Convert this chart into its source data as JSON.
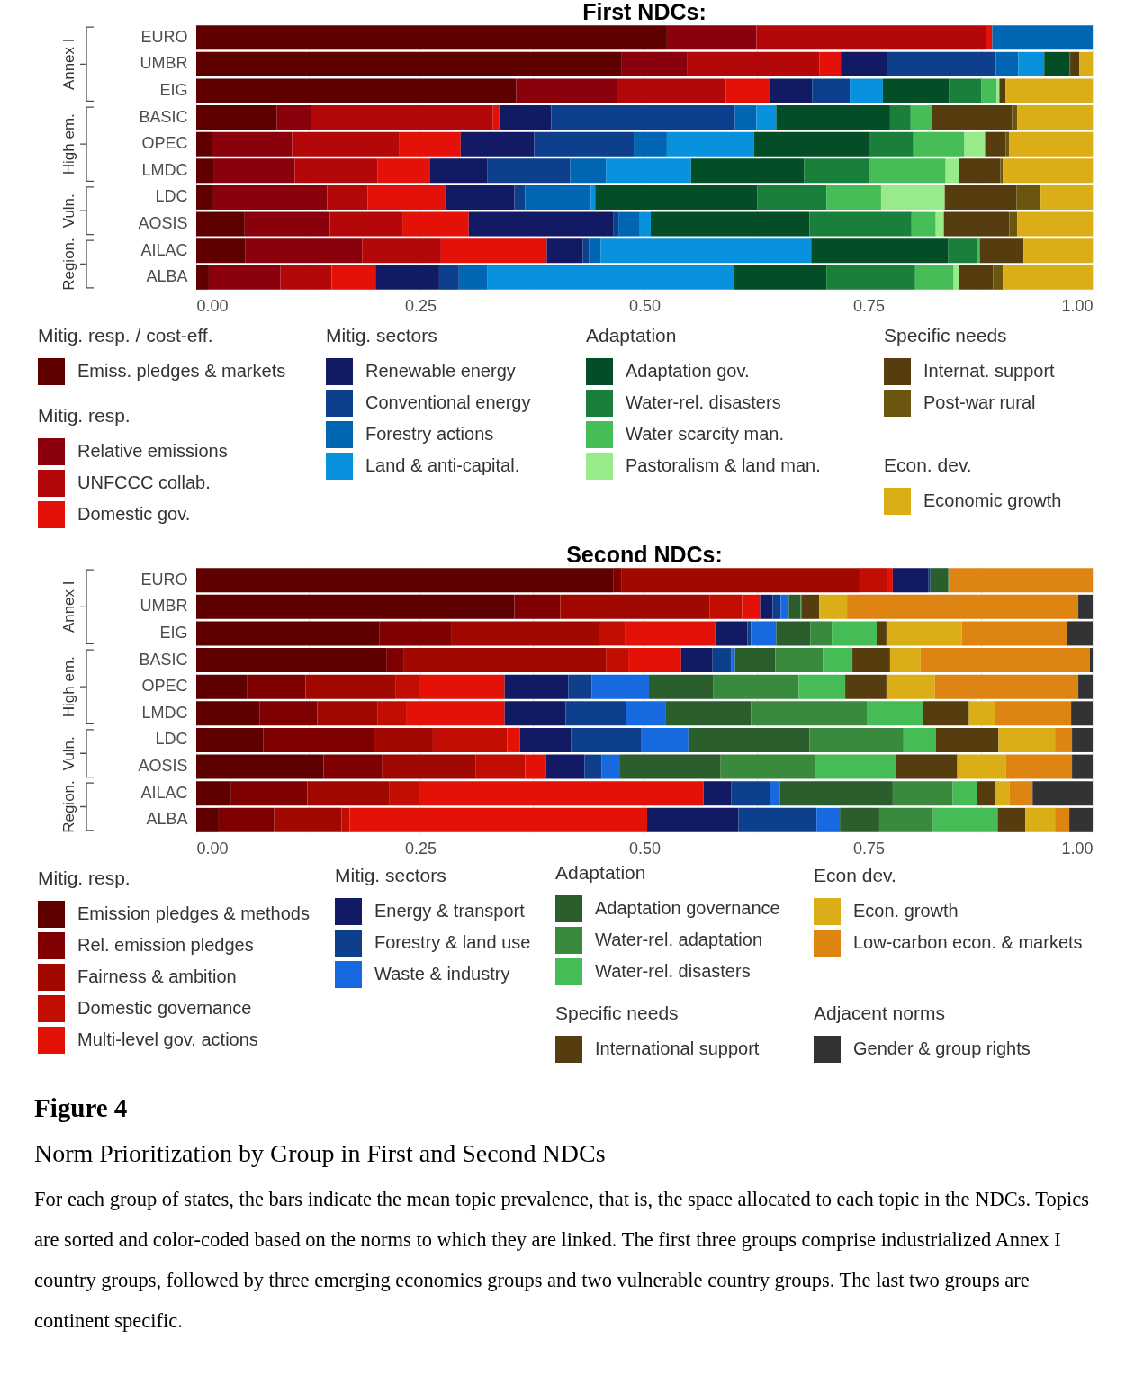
{
  "chart_data": [
    {
      "type": "bar",
      "orientation": "horizontal",
      "stacked": true,
      "title": "First NDCs:",
      "categories": [
        "EURO",
        "UMBR",
        "EIG",
        "BASIC",
        "OPEC",
        "LMDC",
        "LDC",
        "AOSIS",
        "AILAC",
        "ALBA"
      ],
      "xlim": [
        0,
        1
      ],
      "xticks": [
        {
          "value": 0,
          "label": "0.00"
        },
        {
          "value": 0.125,
          "label": null
        },
        {
          "value": 0.25,
          "label": "0.25"
        },
        {
          "value": 0.375,
          "label": null
        },
        {
          "value": 0.5,
          "label": "0.50"
        },
        {
          "value": 0.625,
          "label": null
        },
        {
          "value": 0.75,
          "label": "0.75"
        },
        {
          "value": 0.875,
          "label": null
        },
        {
          "value": 1,
          "label": "1.00"
        }
      ],
      "grid": true,
      "legend": "bottom",
      "legend_title": [
        "Mitig. resp. / cost-eff.",
        "Mitig. resp.",
        "Mitig. sectors",
        "Adaptation",
        "Specific needs",
        "Econ. dev."
      ],
      "annotations": [
        "Annex I",
        "High em.",
        "Vuln.",
        "Region."
      ],
      "series": [
        {
          "name": "Emiss. pledges & markets",
          "color": "#5e0000",
          "values": [
            0.525,
            0.474,
            0.357,
            0.09,
            0.018,
            0.02,
            0.019,
            0.054,
            0.055,
            0.014
          ]
        },
        {
          "name": "Relative emissions",
          "color": "#8a000b",
          "values": [
            0.1,
            0.074,
            0.112,
            0.038,
            0.089,
            0.09,
            0.127,
            0.095,
            0.13,
            0.08
          ]
        },
        {
          "name": "UNFCCC collab.",
          "color": "#b30709",
          "values": [
            0.256,
            0.147,
            0.122,
            0.203,
            0.119,
            0.092,
            0.045,
            0.081,
            0.088,
            0.057
          ]
        },
        {
          "name": "Domestic gov.",
          "color": "#e31107",
          "values": [
            0.007,
            0.024,
            0.049,
            0.007,
            0.069,
            0.059,
            0.087,
            0.074,
            0.118,
            0.049
          ]
        },
        {
          "name": "Renewable energy",
          "color": "#121a63",
          "values": [
            0,
            0.052,
            0.047,
            0.058,
            0.082,
            0.064,
            0.077,
            0.161,
            0.04,
            0.071
          ]
        },
        {
          "name": "Conventional energy",
          "color": "#0d3f8c",
          "values": [
            0,
            0.121,
            0.042,
            0.205,
            0.111,
            0.092,
            0.012,
            0.006,
            0.007,
            0.022
          ]
        },
        {
          "name": "Forestry actions",
          "color": "#0066b3",
          "values": [
            0.112,
            0.025,
            0,
            0.024,
            0.037,
            0.04,
            0.073,
            0.023,
            0.013,
            0.032
          ]
        },
        {
          "name": "Land & anti-capital.",
          "color": "#0892dd",
          "values": [
            0,
            0.029,
            0.037,
            0.022,
            0.097,
            0.095,
            0.005,
            0.013,
            0.235,
            0.275
          ]
        },
        {
          "name": "Adaptation gov.",
          "color": "#034d27",
          "values": [
            0,
            0.028,
            0.074,
            0.127,
            0.128,
            0.126,
            0.181,
            0.177,
            0.153,
            0.103
          ]
        },
        {
          "name": "Water-rel. disasters",
          "color": "#1a7f3a",
          "values": [
            0,
            0.001,
            0.036,
            0.023,
            0.05,
            0.073,
            0.077,
            0.114,
            0.032,
            0.099
          ]
        },
        {
          "name": "Water scarcity man.",
          "color": "#46bd57",
          "values": [
            0,
            0,
            0.017,
            0.023,
            0.057,
            0.085,
            0.061,
            0.027,
            0.003,
            0.043
          ]
        },
        {
          "name": "Pastoralism & land man.",
          "color": "#99ea88",
          "values": [
            0,
            0,
            0.003,
            0,
            0.023,
            0.015,
            0.071,
            0.009,
            0,
            0.006
          ]
        },
        {
          "name": "Internat. support",
          "color": "#553d10",
          "values": [
            0,
            0.01,
            0.007,
            0.09,
            0.023,
            0.046,
            0.08,
            0.073,
            0.049,
            0.038
          ]
        },
        {
          "name": "Post-war rural",
          "color": "#6b560f",
          "values": [
            0,
            0,
            0,
            0.006,
            0.004,
            0.003,
            0.027,
            0.009,
            0,
            0.011
          ]
        },
        {
          "name": "Economic growth",
          "color": "#dbad16",
          "values": [
            0,
            0.015,
            0.097,
            0.084,
            0.093,
            0.1,
            0.058,
            0.084,
            0.077,
            0.1
          ]
        }
      ]
    },
    {
      "type": "bar",
      "orientation": "horizontal",
      "stacked": true,
      "title": "Second NDCs:",
      "categories": [
        "EURO",
        "UMBR",
        "EIG",
        "BASIC",
        "OPEC",
        "LMDC",
        "LDC",
        "AOSIS",
        "AILAC",
        "ALBA"
      ],
      "xlim": [
        0,
        1
      ],
      "xticks": [
        {
          "value": 0,
          "label": "0.00"
        },
        {
          "value": 0.125,
          "label": null
        },
        {
          "value": 0.25,
          "label": "0.25"
        },
        {
          "value": 0.375,
          "label": null
        },
        {
          "value": 0.5,
          "label": "0.50"
        },
        {
          "value": 0.625,
          "label": null
        },
        {
          "value": 0.75,
          "label": "0.75"
        },
        {
          "value": 0.875,
          "label": null
        },
        {
          "value": 1,
          "label": "1.00"
        }
      ],
      "grid": true,
      "legend": "bottom",
      "legend_title": [
        "Mitig. resp.",
        "Mitig. sectors",
        "Adaptation",
        "Specific needs",
        "Econ dev.",
        "Adjacent norms"
      ],
      "annotations": [
        "Annex I",
        "High em.",
        "Vuln.",
        "Region.",
        "Figure 4",
        "Norm Prioritization by Group in First and Second NDCs",
        "For each group of states, the bars indicate the mean topic prevalence, that is, the space allocated to each topic in the NDCs. Topics are sorted and color-coded based on the norms to which they are linked. The first three groups comprise industrialized Annex I country groups, followed by three emerging economies groups and two vulnerable country groups. The last two groups are continent specific."
      ],
      "series": [
        {
          "name": "Emission pledges & methods",
          "color": "#5e0000",
          "values": [
            0.465,
            0.355,
            0.204,
            0.212,
            0.057,
            0.071,
            0.075,
            0.142,
            0.039,
            0.025
          ]
        },
        {
          "name": "Rel. emission pledges",
          "color": "#7f0000",
          "values": [
            0.009,
            0.051,
            0.081,
            0.019,
            0.065,
            0.064,
            0.123,
            0.065,
            0.085,
            0.062
          ]
        },
        {
          "name": "Fairness & ambition",
          "color": "#a00800",
          "values": [
            0.267,
            0.167,
            0.164,
            0.226,
            0.1,
            0.067,
            0.066,
            0.105,
            0.091,
            0.075
          ]
        },
        {
          "name": "Domestic governance",
          "color": "#c20d03",
          "values": [
            0.03,
            0.036,
            0.029,
            0.025,
            0.026,
            0.032,
            0.083,
            0.055,
            0.033,
            0.009
          ]
        },
        {
          "name": "Multi-level gov. actions",
          "color": "#e31106",
          "values": [
            0.006,
            0.02,
            0.101,
            0.059,
            0.096,
            0.11,
            0.014,
            0.023,
            0.318,
            0.332
          ]
        },
        {
          "name": "Energy & transport",
          "color": "#121a63",
          "values": [
            0.04,
            0.014,
            0.036,
            0.035,
            0.071,
            0.068,
            0.057,
            0.043,
            0.031,
            0.102
          ]
        },
        {
          "name": "Forestry & land use",
          "color": "#0d3f8c",
          "values": [
            0.002,
            0.009,
            0.004,
            0.021,
            0.026,
            0.067,
            0.078,
            0.019,
            0.043,
            0.087
          ]
        },
        {
          "name": "Waste & industry",
          "color": "#1769e0",
          "values": [
            0,
            0.009,
            0.028,
            0.004,
            0.064,
            0.045,
            0.053,
            0.02,
            0.011,
            0.026
          ]
        },
        {
          "name": "Adaptation governance",
          "color": "#2b5e2d",
          "values": [
            0.02,
            0.013,
            0.038,
            0.045,
            0.072,
            0.095,
            0.135,
            0.113,
            0.126,
            0.044
          ]
        },
        {
          "name": "Water-rel. adaptation",
          "color": "#3a8a3e",
          "values": [
            0.001,
            0.001,
            0.024,
            0.053,
            0.095,
            0.129,
            0.105,
            0.105,
            0.067,
            0.06
          ]
        },
        {
          "name": "Water-rel. disasters",
          "color": "#46bc57",
          "values": [
            0,
            0,
            0.05,
            0.033,
            0.052,
            0.063,
            0.036,
            0.091,
            0.027,
            0.072
          ]
        },
        {
          "name": "International support",
          "color": "#553d10",
          "values": [
            0,
            0.02,
            0.011,
            0.042,
            0.046,
            0.051,
            0.07,
            0.068,
            0.021,
            0.031
          ]
        },
        {
          "name": "Econ. growth",
          "color": "#dbad16",
          "values": [
            0,
            0.031,
            0.084,
            0.034,
            0.054,
            0.029,
            0.063,
            0.054,
            0.015,
            0.033
          ]
        },
        {
          "name": "Low-carbon econ. & markets",
          "color": "#de8413",
          "values": [
            0.16,
            0.258,
            0.117,
            0.189,
            0.16,
            0.085,
            0.019,
            0.074,
            0.026,
            0.016
          ]
        },
        {
          "name": "Gender & group rights",
          "color": "#333333",
          "values": [
            0,
            0.016,
            0.029,
            0.003,
            0.016,
            0.024,
            0.023,
            0.023,
            0.067,
            0.026
          ]
        }
      ]
    }
  ]
}
